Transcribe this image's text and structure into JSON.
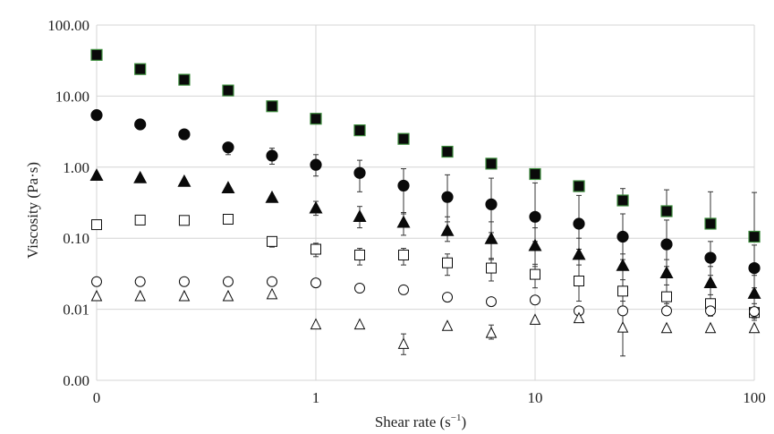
{
  "chart_data": {
    "type": "scatter",
    "title": "",
    "xlabel": "Shear rate (s",
    "xlabel_sup": "−1",
    "xlabel_end": ")",
    "ylabel": "Viscosity (Pa·s)",
    "xscale": "log",
    "yscale": "log",
    "xlim": [
      0.1,
      100
    ],
    "ylim": [
      0.001,
      100
    ],
    "grid": true,
    "legend": "none",
    "x_ticks": [
      {
        "value": 0.1,
        "label": "0"
      },
      {
        "value": 1,
        "label": "1"
      },
      {
        "value": 10,
        "label": "10"
      },
      {
        "value": 100,
        "label": "100"
      }
    ],
    "y_ticks": [
      {
        "value": 0.001,
        "label": "0.00"
      },
      {
        "value": 0.01,
        "label": "0.01"
      },
      {
        "value": 0.1,
        "label": "0.10"
      },
      {
        "value": 1,
        "label": "1.00"
      },
      {
        "value": 10,
        "label": "10.00"
      },
      {
        "value": 100,
        "label": "100.00"
      }
    ],
    "series": [
      {
        "marker": "square-filled",
        "fill": "#0a0a0a",
        "edge": "#3a8a3a",
        "points": [
          {
            "x": 0.1,
            "y": 38
          },
          {
            "x": 0.158,
            "y": 24
          },
          {
            "x": 0.251,
            "y": 17
          },
          {
            "x": 0.398,
            "y": 12
          },
          {
            "x": 0.631,
            "y": 7.2
          },
          {
            "x": 1.0,
            "y": 4.8
          },
          {
            "x": 1.585,
            "y": 3.3
          },
          {
            "x": 2.512,
            "y": 2.5
          },
          {
            "x": 3.981,
            "y": 1.65
          },
          {
            "x": 6.31,
            "y": 1.12
          },
          {
            "x": 10.0,
            "y": 0.8
          },
          {
            "x": 15.85,
            "y": 0.54
          },
          {
            "x": 25.12,
            "y": 0.34
          },
          {
            "x": 39.81,
            "y": 0.24
          },
          {
            "x": 63.1,
            "y": 0.16
          },
          {
            "x": 100.0,
            "y": 0.105
          }
        ],
        "error_upper": [
          null,
          null,
          null,
          null,
          null,
          null,
          null,
          null,
          null,
          null,
          null,
          null,
          0.5,
          0.48,
          0.45,
          0.44
        ]
      },
      {
        "marker": "circle-filled",
        "fill": "#0a0a0a",
        "edge": "#0a0a0a",
        "points": [
          {
            "x": 0.1,
            "y": 5.4
          },
          {
            "x": 0.158,
            "y": 4.0
          },
          {
            "x": 0.251,
            "y": 2.9
          },
          {
            "x": 0.398,
            "y": 1.9
          },
          {
            "x": 0.631,
            "y": 1.45
          },
          {
            "x": 1.0,
            "y": 1.08
          },
          {
            "x": 1.585,
            "y": 0.83
          },
          {
            "x": 2.512,
            "y": 0.55
          },
          {
            "x": 3.981,
            "y": 0.38
          },
          {
            "x": 6.31,
            "y": 0.3
          },
          {
            "x": 10.0,
            "y": 0.2
          },
          {
            "x": 15.85,
            "y": 0.16
          },
          {
            "x": 25.12,
            "y": 0.105
          },
          {
            "x": 39.81,
            "y": 0.082
          },
          {
            "x": 63.1,
            "y": 0.053
          },
          {
            "x": 100.0,
            "y": 0.038
          }
        ],
        "error_lower": [
          null,
          null,
          null,
          1.5,
          1.1,
          0.75,
          0.45,
          0.22,
          0.17,
          0.12,
          0.09,
          0.07,
          0.05,
          0.04,
          0.03,
          0.02
        ],
        "error_upper": [
          null,
          null,
          null,
          2.2,
          1.85,
          1.5,
          1.25,
          0.95,
          0.78,
          0.7,
          0.6,
          0.4,
          0.22,
          0.18,
          0.09,
          0.08
        ]
      },
      {
        "marker": "triangle-filled",
        "fill": "#0a0a0a",
        "edge": "#0a0a0a",
        "points": [
          {
            "x": 0.1,
            "y": 0.78
          },
          {
            "x": 0.158,
            "y": 0.72
          },
          {
            "x": 0.251,
            "y": 0.64
          },
          {
            "x": 0.398,
            "y": 0.52
          },
          {
            "x": 0.631,
            "y": 0.38
          },
          {
            "x": 1.0,
            "y": 0.27
          },
          {
            "x": 1.585,
            "y": 0.205
          },
          {
            "x": 2.512,
            "y": 0.17
          },
          {
            "x": 3.981,
            "y": 0.13
          },
          {
            "x": 6.31,
            "y": 0.1
          },
          {
            "x": 10.0,
            "y": 0.08
          },
          {
            "x": 15.85,
            "y": 0.06
          },
          {
            "x": 25.12,
            "y": 0.042
          },
          {
            "x": 39.81,
            "y": 0.033
          },
          {
            "x": 63.1,
            "y": 0.024
          },
          {
            "x": 100.0,
            "y": 0.017
          }
        ],
        "error_lower": [
          null,
          null,
          null,
          null,
          null,
          0.21,
          0.14,
          0.11,
          0.09,
          0.05,
          0.04,
          0.025,
          0.016,
          0.012,
          0.009,
          0.007
        ],
        "error_upper": [
          null,
          null,
          null,
          null,
          null,
          0.33,
          0.28,
          0.23,
          0.2,
          0.17,
          0.14,
          0.1,
          0.06,
          0.05,
          0.04,
          0.03
        ]
      },
      {
        "marker": "square-open",
        "fill": "#ffffff",
        "edge": "#0a0a0a",
        "points": [
          {
            "x": 0.1,
            "y": 0.155
          },
          {
            "x": 0.158,
            "y": 0.18
          },
          {
            "x": 0.251,
            "y": 0.178
          },
          {
            "x": 0.398,
            "y": 0.185
          },
          {
            "x": 0.631,
            "y": 0.09
          },
          {
            "x": 1.0,
            "y": 0.07
          },
          {
            "x": 1.585,
            "y": 0.058
          },
          {
            "x": 2.512,
            "y": 0.058
          },
          {
            "x": 3.981,
            "y": 0.045
          },
          {
            "x": 6.31,
            "y": 0.038
          },
          {
            "x": 10.0,
            "y": 0.031
          },
          {
            "x": 15.85,
            "y": 0.025
          },
          {
            "x": 25.12,
            "y": 0.018
          },
          {
            "x": 39.81,
            "y": 0.015
          },
          {
            "x": 63.1,
            "y": 0.012
          },
          {
            "x": 100.0,
            "y": 0.009
          }
        ],
        "error_lower": [
          null,
          0.16,
          0.16,
          0.165,
          0.075,
          0.055,
          0.042,
          0.042,
          0.03,
          0.025,
          0.02,
          0.013,
          0.011,
          0.009,
          0.008,
          0.0075
        ],
        "error_upper": [
          null,
          0.2,
          0.2,
          0.205,
          0.105,
          0.085,
          0.072,
          0.072,
          0.06,
          0.052,
          0.043,
          0.042,
          0.026,
          0.022,
          0.016,
          0.012
        ]
      },
      {
        "marker": "circle-open",
        "fill": "#ffffff",
        "edge": "#0a0a0a",
        "points": [
          {
            "x": 0.1,
            "y": 0.0245
          },
          {
            "x": 0.158,
            "y": 0.0245
          },
          {
            "x": 0.251,
            "y": 0.0245
          },
          {
            "x": 0.398,
            "y": 0.0245
          },
          {
            "x": 0.631,
            "y": 0.0245
          },
          {
            "x": 1.0,
            "y": 0.0235
          },
          {
            "x": 1.585,
            "y": 0.0198
          },
          {
            "x": 2.512,
            "y": 0.0188
          },
          {
            "x": 3.981,
            "y": 0.0148
          },
          {
            "x": 6.31,
            "y": 0.0128
          },
          {
            "x": 10.0,
            "y": 0.0135
          },
          {
            "x": 15.85,
            "y": 0.0095
          },
          {
            "x": 25.12,
            "y": 0.0095
          },
          {
            "x": 39.81,
            "y": 0.0095
          },
          {
            "x": 63.1,
            "y": 0.0095
          },
          {
            "x": 100.0,
            "y": 0.0093
          }
        ]
      },
      {
        "marker": "triangle-open",
        "fill": "#ffffff",
        "edge": "#0a0a0a",
        "points": [
          {
            "x": 0.1,
            "y": 0.0155
          },
          {
            "x": 0.158,
            "y": 0.0155
          },
          {
            "x": 0.251,
            "y": 0.0155
          },
          {
            "x": 0.398,
            "y": 0.0155
          },
          {
            "x": 0.631,
            "y": 0.0165
          },
          {
            "x": 1.0,
            "y": 0.0062
          },
          {
            "x": 1.585,
            "y": 0.0062
          },
          {
            "x": 2.512,
            "y": 0.0033
          },
          {
            "x": 3.981,
            "y": 0.0059
          },
          {
            "x": 6.31,
            "y": 0.0047
          },
          {
            "x": 10.0,
            "y": 0.0072
          },
          {
            "x": 15.85,
            "y": 0.0076
          },
          {
            "x": 25.12,
            "y": 0.0056
          },
          {
            "x": 39.81,
            "y": 0.0055
          },
          {
            "x": 63.1,
            "y": 0.0055
          },
          {
            "x": 100.0,
            "y": 0.0055
          }
        ],
        "error_lower": [
          null,
          null,
          null,
          null,
          null,
          null,
          null,
          0.0023,
          null,
          0.0038,
          null,
          null,
          0.0022,
          null,
          null,
          null
        ],
        "error_upper": [
          null,
          null,
          null,
          null,
          null,
          null,
          null,
          0.0045,
          null,
          0.006,
          null,
          null,
          0.013,
          null,
          null,
          null
        ]
      }
    ]
  }
}
